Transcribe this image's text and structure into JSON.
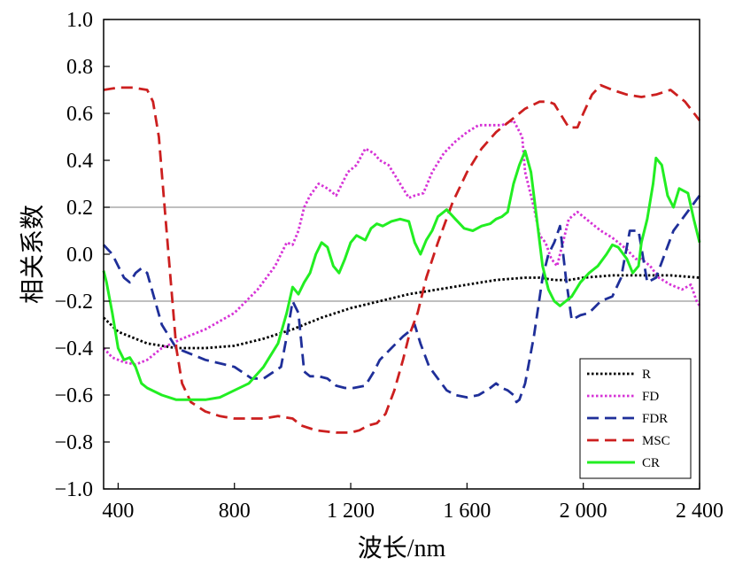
{
  "chart_data": {
    "type": "line",
    "title": "",
    "xlabel": "波长/nm",
    "ylabel": "相关系数",
    "xlim": [
      350,
      2400
    ],
    "ylim": [
      -1.0,
      1.0
    ],
    "xticks": [
      400,
      800,
      1200,
      1600,
      2000,
      2400
    ],
    "xtick_labels": [
      "400",
      "800",
      "1 200",
      "1 600",
      "2 000",
      "2 400"
    ],
    "yticks": [
      -1.0,
      -0.8,
      -0.6,
      -0.4,
      -0.2,
      0.0,
      0.2,
      0.4,
      0.6,
      0.8,
      1.0
    ],
    "ytick_labels": [
      "−1.0",
      "−0.8",
      "−0.6",
      "−0.4",
      "−0.2",
      "0.0",
      "0.2",
      "0.4",
      "0.6",
      "0.8",
      "1.0"
    ],
    "reference_lines": [
      0.2,
      -0.2
    ],
    "legend_position": "bottom-right",
    "series": [
      {
        "name": "R",
        "color": "#000000",
        "style": "dotted",
        "x": [
          350,
          400,
          500,
          600,
          700,
          800,
          900,
          1000,
          1100,
          1200,
          1300,
          1400,
          1500,
          1600,
          1700,
          1800,
          1850,
          1900,
          1950,
          2000,
          2100,
          2200,
          2300,
          2400
        ],
        "y": [
          -0.27,
          -0.33,
          -0.38,
          -0.4,
          -0.4,
          -0.39,
          -0.36,
          -0.32,
          -0.27,
          -0.23,
          -0.2,
          -0.17,
          -0.15,
          -0.13,
          -0.11,
          -0.1,
          -0.1,
          -0.11,
          -0.11,
          -0.1,
          -0.09,
          -0.09,
          -0.09,
          -0.1
        ]
      },
      {
        "name": "FD",
        "color": "#d633d6",
        "style": "dotted",
        "x": [
          350,
          380,
          420,
          460,
          500,
          550,
          620,
          700,
          800,
          880,
          940,
          980,
          1000,
          1020,
          1040,
          1060,
          1090,
          1120,
          1150,
          1170,
          1190,
          1220,
          1250,
          1280,
          1300,
          1330,
          1360,
          1380,
          1400,
          1420,
          1450,
          1480,
          1520,
          1560,
          1600,
          1640,
          1680,
          1720,
          1760,
          1790,
          1800,
          1830,
          1850,
          1870,
          1890,
          1910,
          1930,
          1950,
          1980,
          2000,
          2030,
          2060,
          2100,
          2150,
          2180,
          2200,
          2230,
          2260,
          2300,
          2340,
          2370,
          2390,
          2400
        ],
        "y": [
          -0.4,
          -0.44,
          -0.46,
          -0.47,
          -0.45,
          -0.4,
          -0.36,
          -0.32,
          -0.25,
          -0.15,
          -0.05,
          0.05,
          0.04,
          0.1,
          0.2,
          0.25,
          0.3,
          0.28,
          0.25,
          0.3,
          0.35,
          0.38,
          0.45,
          0.43,
          0.4,
          0.38,
          0.32,
          0.28,
          0.24,
          0.25,
          0.26,
          0.35,
          0.43,
          0.48,
          0.52,
          0.55,
          0.55,
          0.55,
          0.57,
          0.5,
          0.35,
          0.2,
          0.08,
          0.05,
          -0.02,
          -0.05,
          0.05,
          0.15,
          0.18,
          0.16,
          0.13,
          0.1,
          0.07,
          0.02,
          -0.02,
          -0.02,
          -0.05,
          -0.1,
          -0.13,
          -0.15,
          -0.13,
          -0.2,
          -0.22
        ]
      },
      {
        "name": "FDR",
        "color": "#1f2f99",
        "style": "dashed",
        "x": [
          350,
          380,
          420,
          440,
          460,
          480,
          500,
          550,
          600,
          700,
          800,
          860,
          900,
          960,
          980,
          1000,
          1020,
          1040,
          1060,
          1090,
          1120,
          1150,
          1180,
          1210,
          1250,
          1280,
          1300,
          1340,
          1380,
          1400,
          1420,
          1440,
          1470,
          1500,
          1530,
          1560,
          1600,
          1640,
          1680,
          1700,
          1720,
          1740,
          1760,
          1770,
          1780,
          1800,
          1830,
          1860,
          1880,
          1900,
          1920,
          1940,
          1960,
          1990,
          2020,
          2060,
          2100,
          2130,
          2160,
          2190,
          2220,
          2250,
          2280,
          2310,
          2340,
          2370,
          2400
        ],
        "y": [
          0.04,
          0.0,
          -0.1,
          -0.12,
          -0.08,
          -0.06,
          -0.08,
          -0.3,
          -0.4,
          -0.45,
          -0.48,
          -0.53,
          -0.53,
          -0.48,
          -0.35,
          -0.2,
          -0.25,
          -0.5,
          -0.52,
          -0.52,
          -0.53,
          -0.56,
          -0.57,
          -0.57,
          -0.56,
          -0.5,
          -0.45,
          -0.4,
          -0.35,
          -0.33,
          -0.3,
          -0.38,
          -0.48,
          -0.53,
          -0.58,
          -0.6,
          -0.61,
          -0.6,
          -0.57,
          -0.55,
          -0.57,
          -0.58,
          -0.6,
          -0.63,
          -0.62,
          -0.55,
          -0.35,
          -0.1,
          0.0,
          0.05,
          0.12,
          -0.1,
          -0.28,
          -0.26,
          -0.25,
          -0.2,
          -0.18,
          -0.1,
          0.1,
          0.1,
          -0.12,
          -0.1,
          0.0,
          0.1,
          0.15,
          0.2,
          0.25
        ]
      },
      {
        "name": "MSC",
        "color": "#cc1f1f",
        "style": "dashed",
        "x": [
          350,
          400,
          450,
          500,
          520,
          540,
          560,
          580,
          600,
          620,
          650,
          700,
          750,
          800,
          850,
          900,
          950,
          1000,
          1030,
          1080,
          1150,
          1200,
          1230,
          1260,
          1290,
          1320,
          1350,
          1380,
          1400,
          1430,
          1460,
          1500,
          1550,
          1600,
          1650,
          1700,
          1750,
          1800,
          1850,
          1880,
          1900,
          1920,
          1950,
          1980,
          2000,
          2030,
          2060,
          2100,
          2150,
          2200,
          2250,
          2300,
          2350,
          2400
        ],
        "y": [
          0.7,
          0.71,
          0.71,
          0.7,
          0.65,
          0.5,
          0.2,
          -0.1,
          -0.4,
          -0.55,
          -0.63,
          -0.67,
          -0.69,
          -0.7,
          -0.7,
          -0.7,
          -0.69,
          -0.7,
          -0.73,
          -0.75,
          -0.76,
          -0.76,
          -0.75,
          -0.73,
          -0.72,
          -0.68,
          -0.58,
          -0.45,
          -0.35,
          -0.25,
          -0.1,
          0.05,
          0.22,
          0.35,
          0.45,
          0.52,
          0.57,
          0.62,
          0.65,
          0.65,
          0.64,
          0.6,
          0.54,
          0.54,
          0.6,
          0.68,
          0.72,
          0.7,
          0.68,
          0.67,
          0.68,
          0.7,
          0.65,
          0.57
        ]
      },
      {
        "name": "CR",
        "color": "#22ee22",
        "style": "solid",
        "x": [
          350,
          360,
          380,
          400,
          420,
          440,
          460,
          480,
          500,
          550,
          600,
          650,
          700,
          750,
          800,
          850,
          900,
          950,
          980,
          1000,
          1020,
          1040,
          1060,
          1080,
          1100,
          1120,
          1140,
          1160,
          1180,
          1200,
          1220,
          1250,
          1270,
          1290,
          1310,
          1340,
          1370,
          1400,
          1420,
          1440,
          1460,
          1480,
          1500,
          1530,
          1560,
          1590,
          1620,
          1650,
          1680,
          1700,
          1720,
          1740,
          1760,
          1780,
          1800,
          1820,
          1840,
          1860,
          1880,
          1900,
          1920,
          1940,
          1960,
          1990,
          2020,
          2050,
          2080,
          2100,
          2120,
          2150,
          2170,
          2190,
          2200,
          2220,
          2240,
          2250,
          2270,
          2290,
          2310,
          2330,
          2360,
          2380,
          2400
        ],
        "y": [
          -0.07,
          -0.12,
          -0.25,
          -0.4,
          -0.45,
          -0.44,
          -0.48,
          -0.55,
          -0.57,
          -0.6,
          -0.62,
          -0.62,
          -0.62,
          -0.61,
          -0.58,
          -0.55,
          -0.48,
          -0.38,
          -0.25,
          -0.14,
          -0.17,
          -0.12,
          -0.08,
          0.0,
          0.05,
          0.03,
          -0.05,
          -0.08,
          -0.02,
          0.05,
          0.08,
          0.06,
          0.11,
          0.13,
          0.12,
          0.14,
          0.15,
          0.14,
          0.05,
          0.0,
          0.06,
          0.1,
          0.16,
          0.19,
          0.15,
          0.11,
          0.1,
          0.12,
          0.13,
          0.15,
          0.16,
          0.18,
          0.3,
          0.38,
          0.44,
          0.35,
          0.15,
          -0.05,
          -0.15,
          -0.2,
          -0.22,
          -0.2,
          -0.18,
          -0.12,
          -0.08,
          -0.05,
          0.0,
          0.04,
          0.03,
          -0.02,
          -0.08,
          -0.05,
          0.05,
          0.15,
          0.3,
          0.41,
          0.38,
          0.25,
          0.2,
          0.28,
          0.26,
          0.15,
          0.05
        ]
      }
    ]
  }
}
